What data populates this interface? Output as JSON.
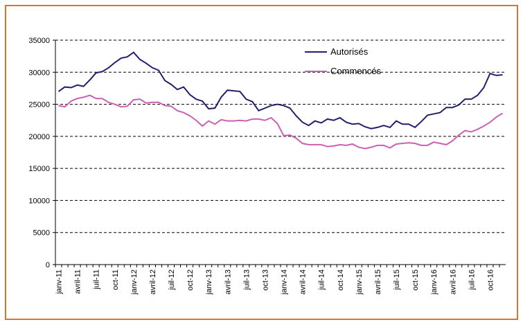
{
  "chart_data": {
    "type": "line",
    "categories": [
      "janv-11",
      null,
      null,
      "avril-11",
      null,
      null,
      "juil-11",
      null,
      null,
      "oct-11",
      null,
      null,
      "janv-12",
      null,
      null,
      "avril-12",
      null,
      null,
      "juil-12",
      null,
      null,
      "oct-12",
      null,
      null,
      "janv-13",
      null,
      null,
      "avril-13",
      null,
      null,
      "juil-13",
      null,
      null,
      "oct-13",
      null,
      null,
      "janv-14",
      null,
      null,
      "avril-14",
      null,
      null,
      "juil-14",
      null,
      null,
      "oct-14",
      null,
      null,
      "janv-15",
      null,
      null,
      "avril-15",
      null,
      null,
      "juil-15",
      null,
      null,
      "oct-15",
      null,
      null,
      "janv-16",
      null,
      null,
      "avril-16",
      null,
      null,
      "juil-16",
      null,
      null,
      "oct-16",
      null,
      null
    ],
    "series": [
      {
        "name": "Autorisés",
        "color": "#1f1f6e",
        "values": [
          27000,
          27700,
          27600,
          28000,
          27800,
          28800,
          29900,
          30100,
          30700,
          31500,
          32200,
          32400,
          33100,
          32000,
          31400,
          30700,
          30300,
          28700,
          28100,
          27300,
          27700,
          26500,
          25800,
          25500,
          24300,
          24400,
          26100,
          27200,
          27100,
          27000,
          25800,
          25400,
          24000,
          24400,
          24800,
          25000,
          24800,
          24400,
          23200,
          22200,
          21700,
          22400,
          22100,
          22700,
          22500,
          22900,
          22200,
          21900,
          22000,
          21500,
          21200,
          21400,
          21700,
          21400,
          22400,
          21900,
          21900,
          21400,
          22300,
          23300,
          23500,
          23700,
          24500,
          24500,
          24900,
          25800,
          25800,
          26400,
          27600,
          29800,
          29500,
          29600
        ]
      },
      {
        "name": "Commencés",
        "color": "#cc5fb3",
        "values": [
          24800,
          24600,
          25500,
          25900,
          26100,
          26400,
          25900,
          25900,
          25300,
          25000,
          24600,
          24700,
          25700,
          25800,
          25200,
          25300,
          25300,
          24800,
          24700,
          24000,
          23700,
          23200,
          22500,
          21600,
          22400,
          21900,
          22600,
          22400,
          22400,
          22500,
          22400,
          22700,
          22700,
          22500,
          22900,
          22000,
          20100,
          20200,
          19700,
          18900,
          18700,
          18700,
          18700,
          18400,
          18500,
          18700,
          18600,
          18800,
          18300,
          18100,
          18300,
          18600,
          18600,
          18200,
          18800,
          18900,
          19000,
          18900,
          18600,
          18600,
          19100,
          18900,
          18700,
          19300,
          20200,
          20900,
          20700,
          21100,
          21600,
          22200,
          23000,
          23600
        ]
      }
    ],
    "ylim": [
      0,
      35000
    ],
    "yticks": [
      0,
      5000,
      10000,
      15000,
      20000,
      25000,
      30000,
      35000
    ],
    "grid": true
  }
}
